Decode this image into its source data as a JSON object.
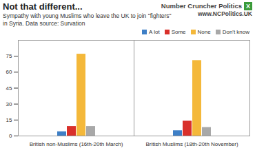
{
  "chart_data": {
    "type": "bar",
    "title": "Not that different...",
    "subtitle": "Sympathy with young Muslims who leave the UK to join \"fighters\" in Syria. Data source: Survation",
    "annotations": [
      "Number Cruncher Politics",
      "X",
      "www.NCPolitics.UK"
    ],
    "categories": [
      "British non-Muslims (16th-20th March)",
      "British Muslims (18th-20th November)"
    ],
    "series": [
      {
        "name": "A lot",
        "color": "#3e7fc6",
        "values": [
          4,
          5
        ]
      },
      {
        "name": "Some",
        "color": "#d9302a",
        "values": [
          9,
          14
        ]
      },
      {
        "name": "None",
        "color": "#f4b83a",
        "values": [
          77,
          71
        ]
      },
      {
        "name": "Don't know",
        "color": "#a8a8a8",
        "values": [
          9,
          8
        ]
      }
    ],
    "ylim": [
      0,
      90
    ],
    "yticks": [
      0,
      15,
      30,
      45,
      60,
      75
    ],
    "grid": false,
    "legend": "top-right"
  }
}
